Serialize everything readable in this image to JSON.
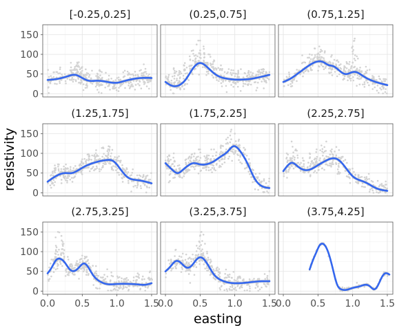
{
  "chart_data": {
    "type": "scatter",
    "xlabel": "easting",
    "ylabel": "resistivity",
    "x_ticks": [
      "0.0",
      "0.5",
      "1.0",
      "1.5"
    ],
    "y_ticks": [
      "0",
      "50",
      "100",
      "150"
    ],
    "xlim": [
      -0.07,
      1.58
    ],
    "ylim": [
      -8,
      175
    ],
    "grid": true,
    "colors": {
      "points": "#d3d3d3",
      "smooth": "#3366ee",
      "band": "#c4c4c4"
    },
    "panels": [
      {
        "title": "[-0.25,0.25]",
        "smooth": [
          [
            0,
            35
          ],
          [
            0.15,
            38
          ],
          [
            0.3,
            45
          ],
          [
            0.4,
            48
          ],
          [
            0.5,
            40
          ],
          [
            0.6,
            33
          ],
          [
            0.7,
            33
          ],
          [
            0.8,
            32
          ],
          [
            1.0,
            28
          ],
          [
            1.1,
            32
          ],
          [
            1.25,
            38
          ],
          [
            1.35,
            40
          ],
          [
            1.5,
            40
          ]
        ],
        "scatter": [
          [
            0.35,
            60
          ],
          [
            0.42,
            72
          ],
          [
            0.45,
            80
          ],
          [
            0.48,
            55
          ],
          [
            0.5,
            68
          ],
          [
            0.55,
            62
          ],
          [
            0.72,
            45
          ],
          [
            0.75,
            60
          ],
          [
            0.78,
            38
          ],
          [
            1.3,
            48
          ],
          [
            1.4,
            55
          ],
          [
            1.45,
            45
          ]
        ]
      },
      {
        "title": "(0.25,0.75]",
        "smooth": [
          [
            0,
            30
          ],
          [
            0.1,
            20
          ],
          [
            0.2,
            22
          ],
          [
            0.3,
            38
          ],
          [
            0.4,
            65
          ],
          [
            0.5,
            78
          ],
          [
            0.6,
            68
          ],
          [
            0.7,
            52
          ],
          [
            0.8,
            42
          ],
          [
            0.9,
            38
          ],
          [
            1.0,
            36
          ],
          [
            1.1,
            36
          ],
          [
            1.2,
            37
          ],
          [
            1.3,
            40
          ],
          [
            1.5,
            48
          ]
        ],
        "scatter": [
          [
            0.05,
            48
          ],
          [
            0.12,
            65
          ],
          [
            0.2,
            58
          ],
          [
            0.28,
            78
          ],
          [
            0.35,
            95
          ],
          [
            0.4,
            110
          ],
          [
            0.45,
            125
          ],
          [
            0.5,
            135
          ],
          [
            0.55,
            120
          ],
          [
            0.62,
            100
          ],
          [
            0.7,
            85
          ],
          [
            0.8,
            72
          ],
          [
            0.95,
            60
          ],
          [
            1.05,
            55
          ],
          [
            1.2,
            58
          ],
          [
            1.35,
            60
          ],
          [
            1.45,
            55
          ]
        ]
      },
      {
        "title": "(0.75,1.25]",
        "smooth": [
          [
            0,
            30
          ],
          [
            0.1,
            38
          ],
          [
            0.2,
            50
          ],
          [
            0.3,
            63
          ],
          [
            0.4,
            75
          ],
          [
            0.5,
            82
          ],
          [
            0.58,
            80
          ],
          [
            0.65,
            73
          ],
          [
            0.72,
            70
          ],
          [
            0.8,
            60
          ],
          [
            0.9,
            50
          ],
          [
            1.0,
            55
          ],
          [
            1.05,
            55
          ],
          [
            1.15,
            45
          ],
          [
            1.3,
            32
          ],
          [
            1.5,
            22
          ]
        ],
        "scatter": [
          [
            0.3,
            80
          ],
          [
            0.38,
            100
          ],
          [
            0.45,
            115
          ],
          [
            0.52,
            120
          ],
          [
            0.6,
            108
          ],
          [
            0.7,
            98
          ],
          [
            0.78,
            85
          ],
          [
            0.88,
            70
          ],
          [
            0.95,
            75
          ],
          [
            1.0,
            120
          ],
          [
            1.03,
            140
          ],
          [
            1.06,
            95
          ],
          [
            1.1,
            60
          ],
          [
            1.3,
            42
          ]
        ]
      },
      {
        "title": "(1.25,1.75]",
        "smooth": [
          [
            0,
            28
          ],
          [
            0.08,
            38
          ],
          [
            0.15,
            45
          ],
          [
            0.25,
            50
          ],
          [
            0.35,
            50
          ],
          [
            0.45,
            58
          ],
          [
            0.55,
            68
          ],
          [
            0.65,
            75
          ],
          [
            0.75,
            80
          ],
          [
            0.85,
            83
          ],
          [
            0.95,
            80
          ],
          [
            1.05,
            60
          ],
          [
            1.15,
            40
          ],
          [
            1.3,
            32
          ],
          [
            1.5,
            24
          ]
        ],
        "scatter": [
          [
            0.1,
            62
          ],
          [
            0.15,
            72
          ],
          [
            0.25,
            60
          ],
          [
            0.4,
            68
          ],
          [
            0.5,
            85
          ],
          [
            0.6,
            95
          ],
          [
            0.7,
            108
          ],
          [
            0.8,
            115
          ],
          [
            0.88,
            118
          ],
          [
            0.92,
            100
          ],
          [
            1.0,
            90
          ],
          [
            1.1,
            60
          ]
        ]
      },
      {
        "title": "(1.75,2.25]",
        "smooth": [
          [
            0,
            75
          ],
          [
            0.1,
            58
          ],
          [
            0.18,
            50
          ],
          [
            0.25,
            58
          ],
          [
            0.32,
            68
          ],
          [
            0.4,
            75
          ],
          [
            0.5,
            72
          ],
          [
            0.58,
            72
          ],
          [
            0.7,
            80
          ],
          [
            0.8,
            92
          ],
          [
            0.9,
            105
          ],
          [
            0.98,
            118
          ],
          [
            1.03,
            115
          ],
          [
            1.1,
            100
          ],
          [
            1.2,
            68
          ],
          [
            1.28,
            38
          ],
          [
            1.38,
            18
          ],
          [
            1.5,
            12
          ]
        ],
        "scatter": [
          [
            0.05,
            95
          ],
          [
            0.12,
            100
          ],
          [
            0.2,
            70
          ],
          [
            0.3,
            85
          ],
          [
            0.42,
            100
          ],
          [
            0.5,
            110
          ],
          [
            0.6,
            95
          ],
          [
            0.7,
            110
          ],
          [
            0.8,
            120
          ],
          [
            0.9,
            140
          ],
          [
            0.95,
            160
          ],
          [
            1.0,
            150
          ],
          [
            1.06,
            135
          ],
          [
            1.15,
            110
          ],
          [
            1.22,
            75
          ]
        ]
      },
      {
        "title": "(2.25,2.75]",
        "smooth": [
          [
            0,
            55
          ],
          [
            0.08,
            72
          ],
          [
            0.12,
            76
          ],
          [
            0.2,
            68
          ],
          [
            0.3,
            58
          ],
          [
            0.4,
            60
          ],
          [
            0.5,
            70
          ],
          [
            0.6,
            80
          ],
          [
            0.7,
            87
          ],
          [
            0.78,
            85
          ],
          [
            0.88,
            68
          ],
          [
            1.0,
            42
          ],
          [
            1.1,
            32
          ],
          [
            1.2,
            25
          ],
          [
            1.3,
            15
          ],
          [
            1.4,
            8
          ],
          [
            1.5,
            5
          ]
        ],
        "scatter": [
          [
            0.05,
            100
          ],
          [
            0.12,
            130
          ],
          [
            0.18,
            110
          ],
          [
            0.28,
            88
          ],
          [
            0.38,
            100
          ],
          [
            0.48,
            110
          ],
          [
            0.55,
            120
          ],
          [
            0.62,
            130
          ],
          [
            0.7,
            110
          ],
          [
            0.8,
            80
          ],
          [
            0.95,
            60
          ],
          [
            1.08,
            45
          ],
          [
            1.2,
            40
          ]
        ]
      },
      {
        "title": "(2.75,3.25]",
        "smooth": [
          [
            0,
            45
          ],
          [
            0.06,
            60
          ],
          [
            0.12,
            78
          ],
          [
            0.18,
            82
          ],
          [
            0.25,
            72
          ],
          [
            0.32,
            55
          ],
          [
            0.4,
            52
          ],
          [
            0.48,
            65
          ],
          [
            0.52,
            70
          ],
          [
            0.58,
            62
          ],
          [
            0.65,
            42
          ],
          [
            0.75,
            25
          ],
          [
            0.85,
            18
          ],
          [
            1.0,
            18
          ],
          [
            1.2,
            18
          ],
          [
            1.3,
            17
          ],
          [
            1.4,
            16
          ],
          [
            1.5,
            20
          ]
        ],
        "scatter": [
          [
            0.08,
            80
          ],
          [
            0.12,
            115
          ],
          [
            0.15,
            150
          ],
          [
            0.2,
            140
          ],
          [
            0.23,
            120
          ],
          [
            0.3,
            80
          ],
          [
            0.42,
            70
          ],
          [
            0.5,
            90
          ],
          [
            0.55,
            85
          ],
          [
            0.7,
            50
          ],
          [
            0.8,
            35
          ],
          [
            1.1,
            30
          ],
          [
            1.3,
            45
          ],
          [
            1.48,
            50
          ]
        ]
      },
      {
        "title": "(3.25,3.75]",
        "smooth": [
          [
            0,
            50
          ],
          [
            0.07,
            62
          ],
          [
            0.15,
            76
          ],
          [
            0.22,
            72
          ],
          [
            0.3,
            60
          ],
          [
            0.38,
            65
          ],
          [
            0.46,
            82
          ],
          [
            0.52,
            85
          ],
          [
            0.6,
            70
          ],
          [
            0.7,
            42
          ],
          [
            0.8,
            28
          ],
          [
            0.9,
            22
          ],
          [
            1.0,
            20
          ],
          [
            1.2,
            22
          ],
          [
            1.3,
            24
          ],
          [
            1.4,
            25
          ],
          [
            1.5,
            25
          ]
        ],
        "scatter": [
          [
            0.08,
            80
          ],
          [
            0.15,
            105
          ],
          [
            0.25,
            95
          ],
          [
            0.35,
            85
          ],
          [
            0.45,
            115
          ],
          [
            0.5,
            140
          ],
          [
            0.52,
            150
          ],
          [
            0.57,
            120
          ],
          [
            0.6,
            100
          ],
          [
            0.65,
            80
          ],
          [
            0.75,
            60
          ],
          [
            0.9,
            40
          ],
          [
            1.05,
            35
          ]
        ]
      },
      {
        "title": "(3.75,4.25]",
        "smooth": [
          [
            0.38,
            55
          ],
          [
            0.42,
            75
          ],
          [
            0.48,
            100
          ],
          [
            0.52,
            115
          ],
          [
            0.57,
            120
          ],
          [
            0.62,
            110
          ],
          [
            0.68,
            80
          ],
          [
            0.73,
            45
          ],
          [
            0.78,
            15
          ],
          [
            0.83,
            5
          ],
          [
            0.9,
            3
          ],
          [
            1.0,
            8
          ],
          [
            1.1,
            12
          ],
          [
            1.18,
            16
          ],
          [
            1.25,
            12
          ],
          [
            1.3,
            5
          ],
          [
            1.35,
            10
          ],
          [
            1.42,
            35
          ],
          [
            1.47,
            45
          ],
          [
            1.53,
            42
          ]
        ],
        "scatter": []
      }
    ]
  }
}
